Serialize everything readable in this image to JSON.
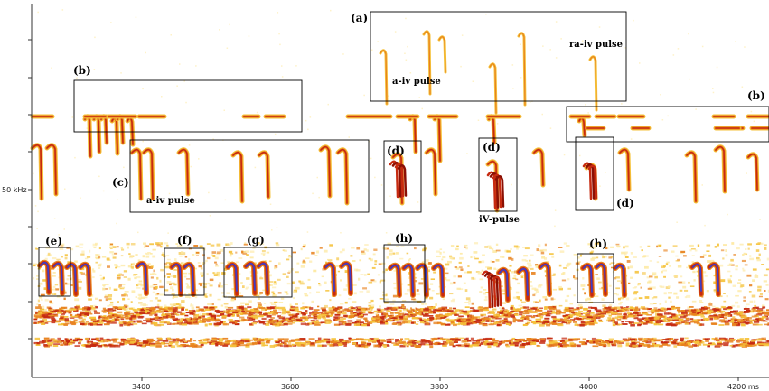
{
  "y_axis": {
    "label_50k": "50 kHz"
  },
  "x_axis": {
    "ticks": [
      "3400",
      "3600",
      "3800",
      "4000",
      "4200 ms"
    ]
  },
  "labels": {
    "a": "(a)",
    "b_left": "(b)",
    "b_right": "(b)",
    "c": "(c)",
    "d1": "(d)",
    "d2": "(d)",
    "d3": "(d)",
    "e": "(e)",
    "f": "(f)",
    "g": "(g)",
    "h1": "(h)",
    "h2": "(h)"
  },
  "notes": {
    "aiv_top": "a-iv pulse",
    "raiv": "ra-iv pulse",
    "aiv_c": "a-iv pulse",
    "ivpulse": "iV-pulse"
  },
  "colors": {
    "background": "#ffffff",
    "pale": "#fde9a3",
    "yellow": "#f5c23a",
    "orange": "#e8821e",
    "red": "#c62a10",
    "dark_red": "#8a1004",
    "blue": "#3f3ec4"
  }
}
